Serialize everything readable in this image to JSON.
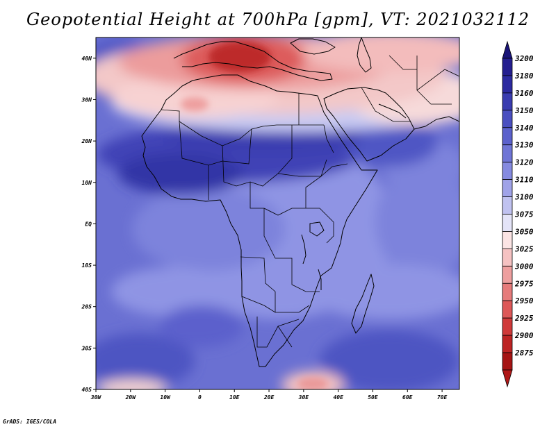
{
  "title": "Geopotential Height at 700hPa [gpm], VT: 2021032112",
  "credit": "GrADS: IGES/COLA",
  "map": {
    "projection": "lat-lon",
    "lon_range": [
      -30,
      75
    ],
    "lat_range": [
      -40,
      45
    ],
    "lon_ticks": [
      {
        "value": -30,
        "label": "30W"
      },
      {
        "value": -20,
        "label": "20W"
      },
      {
        "value": -10,
        "label": "10W"
      },
      {
        "value": 0,
        "label": "0"
      },
      {
        "value": 10,
        "label": "10E"
      },
      {
        "value": 20,
        "label": "20E"
      },
      {
        "value": 30,
        "label": "30E"
      },
      {
        "value": 40,
        "label": "40E"
      },
      {
        "value": 50,
        "label": "50E"
      },
      {
        "value": 60,
        "label": "60E"
      },
      {
        "value": 70,
        "label": "70E"
      }
    ],
    "lat_ticks": [
      {
        "value": 40,
        "label": "40N"
      },
      {
        "value": 30,
        "label": "30N"
      },
      {
        "value": 20,
        "label": "20N"
      },
      {
        "value": 10,
        "label": "10N"
      },
      {
        "value": 0,
        "label": "EQ"
      },
      {
        "value": -10,
        "label": "10S"
      },
      {
        "value": -20,
        "label": "20S"
      },
      {
        "value": -30,
        "label": "30S"
      },
      {
        "value": -40,
        "label": "40S"
      }
    ]
  },
  "colorbar": {
    "orientation": "vertical",
    "levels": [
      {
        "label": "3200",
        "color": "#241e8f"
      },
      {
        "label": "3180",
        "color": "#2c2aa0"
      },
      {
        "label": "3160",
        "color": "#3a3cb0"
      },
      {
        "label": "3150",
        "color": "#4a4fc0"
      },
      {
        "label": "3140",
        "color": "#5b61cc"
      },
      {
        "label": "3130",
        "color": "#6f75d6"
      },
      {
        "label": "3120",
        "color": "#858ae0"
      },
      {
        "label": "3110",
        "color": "#a0a3e8"
      },
      {
        "label": "3100",
        "color": "#c0c2f0"
      },
      {
        "label": "3075",
        "color": "#e4e4f8"
      },
      {
        "label": "3050",
        "color": "#fbe4e4"
      },
      {
        "label": "3025",
        "color": "#f5c2c2"
      },
      {
        "label": "3000",
        "color": "#ee9f9f"
      },
      {
        "label": "2975",
        "color": "#e67b7b"
      },
      {
        "label": "2950",
        "color": "#dd5858"
      },
      {
        "label": "2925",
        "color": "#d03a3a"
      },
      {
        "label": "2900",
        "color": "#bd2424"
      },
      {
        "label": "2875",
        "color": "#a61414"
      }
    ],
    "top_arrow_color": "#1a1478",
    "bottom_arrow_color": "#b01818"
  }
}
